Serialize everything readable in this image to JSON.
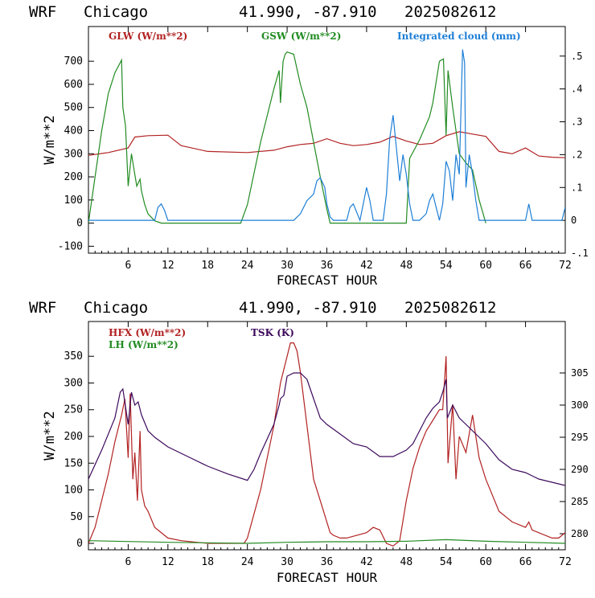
{
  "colors": {
    "red": "#b22222",
    "green": "#228b22",
    "blue": "#1e7fd6",
    "purple": "#3d0a5c"
  },
  "chart_data": [
    {
      "type": "line",
      "header": {
        "model": "WRF",
        "city": "Chicago",
        "coords": "41.990, -87.910",
        "init": "2025082612"
      },
      "xlabel": "FORECAST HOUR",
      "ylabel": "W/m**2",
      "xlim": [
        0,
        72
      ],
      "ylim": [
        -130,
        850
      ],
      "y2lim": [
        -0.1,
        0.59
      ],
      "xticks": [
        "6",
        "12",
        "18",
        "24",
        "30",
        "36",
        "42",
        "48",
        "54",
        "60",
        "66",
        "72"
      ],
      "yticks": [
        "-100",
        "0",
        "100",
        "200",
        "300",
        "400",
        "500",
        "600",
        "700"
      ],
      "y2ticks": [
        "-.1",
        "0",
        ".1",
        ".2",
        ".3",
        ".4",
        ".5"
      ],
      "series": [
        {
          "name": "GLW (W/m**2)",
          "color": "red",
          "axis": "left",
          "x": [
            0,
            3,
            6,
            7,
            9,
            12,
            14,
            18,
            24,
            28,
            30,
            32,
            34,
            36,
            38,
            40,
            42,
            44,
            46,
            48,
            50,
            52,
            54,
            56,
            58,
            60,
            62,
            64,
            66,
            68,
            70,
            72
          ],
          "y": [
            293,
            305,
            325,
            372,
            378,
            380,
            335,
            310,
            305,
            315,
            330,
            340,
            345,
            365,
            345,
            335,
            340,
            350,
            375,
            355,
            340,
            345,
            378,
            395,
            385,
            375,
            310,
            300,
            325,
            290,
            285,
            283
          ]
        },
        {
          "name": "GSW (W/m**2)",
          "color": "green",
          "axis": "left",
          "x": [
            0,
            0.5,
            2,
            3,
            4,
            5,
            5.2,
            5.6,
            6,
            6.5,
            7,
            7.3,
            7.8,
            8,
            8.5,
            9,
            10,
            11,
            12,
            23,
            24,
            26,
            28,
            28.8,
            29,
            29.4,
            29.7,
            30,
            31,
            32,
            33,
            34,
            35,
            36,
            36.5,
            48,
            48.5,
            50,
            51.5,
            52,
            53,
            53.6,
            54,
            54.3,
            55,
            56,
            57,
            58,
            59,
            60
          ],
          "y": [
            0,
            100,
            400,
            560,
            650,
            705,
            500,
            420,
            160,
            300,
            210,
            160,
            190,
            140,
            80,
            40,
            10,
            0,
            0,
            0,
            80,
            350,
            580,
            660,
            520,
            700,
            730,
            740,
            730,
            600,
            500,
            350,
            200,
            60,
            0,
            0,
            280,
            360,
            460,
            520,
            700,
            710,
            380,
            660,
            500,
            300,
            260,
            230,
            100,
            0
          ]
        },
        {
          "name": "Integrated cloud (mm)",
          "color": "blue",
          "axis": "right",
          "x": [
            0,
            10,
            10.5,
            11,
            11.5,
            12,
            31,
            32,
            33,
            34,
            34.5,
            35,
            35.7,
            36,
            36.5,
            37,
            39,
            39.5,
            40,
            41,
            41.6,
            42,
            42.5,
            43,
            44.5,
            45,
            45.5,
            46,
            46.5,
            47,
            47.5,
            48,
            48.5,
            49,
            50,
            51,
            51.5,
            52,
            52.5,
            53,
            53.5,
            54,
            54.5,
            55,
            55.5,
            56,
            56.5,
            56.8,
            57,
            57.5,
            58,
            58.5,
            59,
            60,
            66,
            66.5,
            67,
            71.5,
            72
          ],
          "y": [
            0,
            0,
            0.04,
            0.05,
            0.03,
            0,
            0,
            0.02,
            0.06,
            0.08,
            0.12,
            0.13,
            0.1,
            0.05,
            0.01,
            0,
            0,
            0.04,
            0.05,
            0,
            0.06,
            0.1,
            0.06,
            0,
            0,
            0.08,
            0.25,
            0.32,
            0.22,
            0.12,
            0.2,
            0.14,
            0.05,
            0,
            0,
            0.02,
            0.06,
            0.08,
            0.04,
            0,
            0.05,
            0.18,
            0.15,
            0.06,
            0.2,
            0.14,
            0.52,
            0.48,
            0.1,
            0.2,
            0.14,
            0.06,
            0,
            0,
            0,
            0.05,
            0,
            0,
            0.04
          ]
        }
      ]
    },
    {
      "type": "line",
      "header": {
        "model": "WRF",
        "city": "Chicago",
        "coords": "41.990, -87.910",
        "init": "2025082612"
      },
      "xlabel": "FORECAST HOUR",
      "ylabel": "W/m**2",
      "xlim": [
        0,
        72
      ],
      "ylim": [
        -12,
        415
      ],
      "y2lim": [
        277.5,
        313
      ],
      "xticks": [
        "6",
        "12",
        "18",
        "24",
        "30",
        "36",
        "42",
        "48",
        "54",
        "60",
        "66",
        "72"
      ],
      "yticks": [
        "0",
        "50",
        "100",
        "150",
        "200",
        "250",
        "300",
        "350"
      ],
      "y2ticks": [
        "280",
        "285",
        "290",
        "295",
        "300",
        "305"
      ],
      "series": [
        {
          "name": "HFX (W/m**2)",
          "color": "red",
          "axis": "left",
          "x": [
            0,
            1,
            3,
            4,
            5,
            5.5,
            6,
            6.3,
            6.7,
            7,
            7.4,
            7.8,
            8,
            8.5,
            9,
            10,
            12,
            14,
            18,
            22,
            23.5,
            24,
            26,
            28,
            29,
            30,
            30.5,
            31,
            31.5,
            32,
            33,
            34,
            35,
            35.5,
            36,
            36.5,
            37,
            38,
            39,
            42,
            43,
            44,
            45,
            46,
            47,
            48,
            49,
            50,
            51,
            52,
            53,
            53.5,
            54,
            54.3,
            55,
            55.5,
            56,
            57,
            58,
            59,
            60,
            62,
            64,
            66,
            66.5,
            67,
            70,
            71,
            72
          ],
          "y": [
            0,
            30,
            130,
            190,
            240,
            270,
            160,
            280,
            120,
            170,
            80,
            210,
            100,
            70,
            60,
            30,
            10,
            5,
            0,
            0,
            0,
            10,
            100,
            220,
            300,
            350,
            375,
            375,
            360,
            320,
            220,
            120,
            80,
            60,
            40,
            20,
            15,
            10,
            10,
            20,
            30,
            25,
            0,
            -5,
            5,
            80,
            140,
            180,
            210,
            230,
            250,
            250,
            350,
            150,
            260,
            120,
            200,
            170,
            240,
            160,
            120,
            60,
            40,
            30,
            40,
            25,
            10,
            10,
            20
          ]
        },
        {
          "name": "LH (W/m**2)",
          "color": "green",
          "axis": "left",
          "x": [
            0,
            12,
            24,
            30,
            36,
            42,
            48,
            54,
            60,
            66,
            72
          ],
          "y": [
            5,
            2,
            0,
            2,
            3,
            3,
            4,
            7,
            4,
            2,
            0
          ]
        },
        {
          "name": "TSK (K)",
          "color": "purple",
          "axis": "right",
          "x": [
            0,
            2,
            4,
            4.8,
            5.2,
            6,
            6.5,
            7,
            7.5,
            8,
            9,
            10,
            12,
            15,
            18,
            21,
            24,
            25,
            26,
            28,
            28.8,
            29,
            29.5,
            30,
            31,
            32,
            33,
            34,
            35,
            36,
            38,
            40,
            42,
            44,
            46,
            48,
            49,
            50,
            51,
            52,
            53,
            53.5,
            54,
            54.2,
            55,
            56,
            57,
            58,
            60,
            62,
            64,
            66,
            67,
            68,
            70,
            72
          ],
          "y": [
            288.5,
            293,
            298,
            302,
            302.5,
            297,
            302,
            300,
            300.5,
            298.5,
            296,
            295,
            293.5,
            292,
            290.5,
            289.3,
            288.3,
            290,
            292.5,
            297,
            300,
            301,
            301.5,
            304.5,
            305,
            305,
            304,
            301,
            298,
            297,
            295.5,
            294,
            293.5,
            292,
            292,
            293,
            294,
            296,
            298,
            299.5,
            300.5,
            302,
            304,
            298,
            300,
            298,
            297,
            296,
            294,
            291.5,
            290,
            289.5,
            289,
            288.5,
            288,
            287.5
          ]
        }
      ]
    }
  ]
}
